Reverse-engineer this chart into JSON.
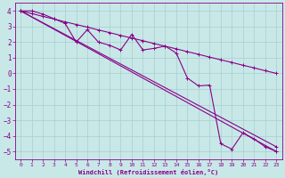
{
  "title": "",
  "xlabel": "Windchill (Refroidissement éolien,°C)",
  "ylabel": "",
  "bg_color": "#c8e8e8",
  "grid_color": "#a8cece",
  "line_color": "#880088",
  "xlim": [
    -0.5,
    23.5
  ],
  "ylim": [
    -5.5,
    4.5
  ],
  "yticks": [
    4,
    3,
    2,
    1,
    0,
    -1,
    -2,
    -3,
    -4,
    -5
  ],
  "xticks": [
    0,
    1,
    2,
    3,
    4,
    5,
    6,
    7,
    8,
    9,
    10,
    11,
    12,
    13,
    14,
    15,
    16,
    17,
    18,
    19,
    20,
    21,
    22,
    23
  ],
  "series1_x": [
    0,
    1,
    2,
    3,
    4,
    5,
    6,
    7,
    8,
    9,
    10,
    11,
    12,
    13,
    14,
    15,
    16,
    17,
    18,
    19,
    20,
    21,
    22,
    23
  ],
  "series1_y": [
    4.0,
    4.0,
    3.8,
    3.5,
    3.2,
    2.0,
    2.8,
    2.0,
    1.8,
    1.5,
    2.5,
    1.5,
    1.6,
    1.75,
    1.3,
    -0.3,
    -0.8,
    -0.75,
    -4.5,
    -4.85,
    -3.8,
    -4.2,
    -4.7,
    -5.0
  ],
  "series2_x": [
    0,
    1,
    2,
    3,
    4,
    5,
    6,
    7,
    8,
    9,
    10,
    11,
    12,
    13,
    14,
    15,
    16,
    17,
    18,
    19,
    20,
    21,
    22,
    23
  ],
  "series2_y": [
    4.0,
    3.83,
    3.65,
    3.48,
    3.3,
    3.13,
    2.96,
    2.78,
    2.61,
    2.43,
    2.26,
    2.09,
    1.91,
    1.74,
    1.57,
    1.39,
    1.22,
    1.04,
    0.87,
    0.7,
    0.52,
    0.35,
    0.17,
    0.0
  ],
  "series3_x": [
    0,
    23
  ],
  "series3_y": [
    4.0,
    -5.0
  ],
  "series4_x": [
    0,
    23
  ],
  "series4_y": [
    4.0,
    -4.7
  ],
  "marker": "+"
}
